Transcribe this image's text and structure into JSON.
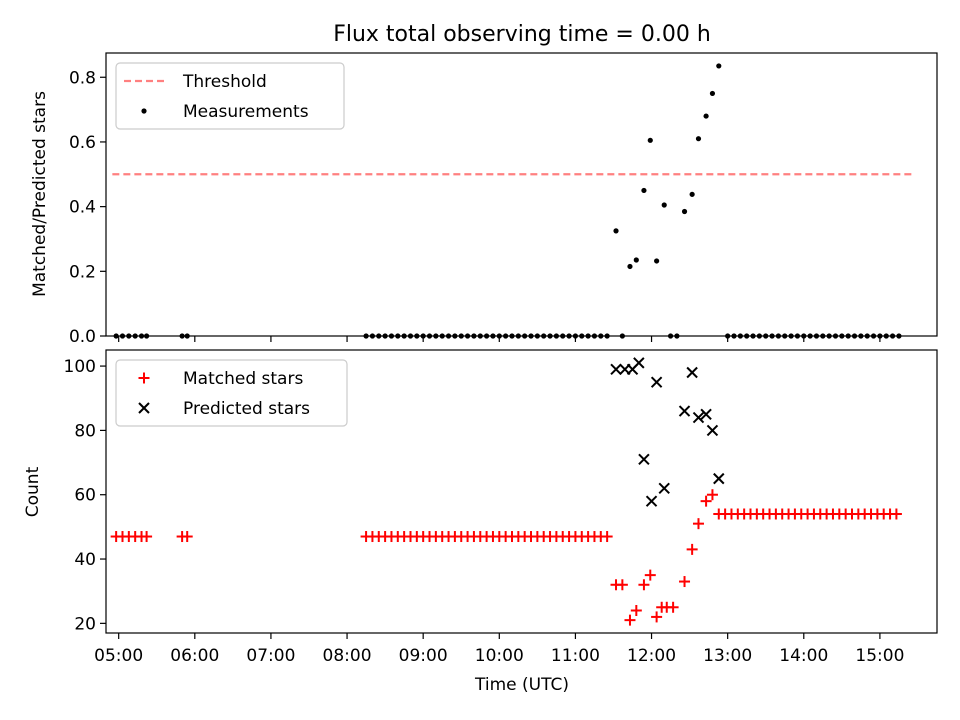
{
  "chart_data": [
    {
      "type": "scatter",
      "title": "Flux total observing time = 0.00 h",
      "ylabel": "Matched/Predicted stars",
      "xlim": [
        "04:50",
        "15:45"
      ],
      "ylim": [
        0,
        0.875
      ],
      "yticks": [
        0.0,
        0.2,
        0.4,
        0.6,
        0.8
      ],
      "ytick_labels": [
        "0.0",
        "0.2",
        "0.4",
        "0.6",
        "0.8"
      ],
      "legend_position": "upper-left",
      "threshold": {
        "name": "Threshold",
        "value": 0.5,
        "x_range": [
          "04:55",
          "15:25"
        ],
        "color": "#ff8080",
        "style": "dashed"
      },
      "series": [
        {
          "name": "Measurements",
          "marker": "dot",
          "color": "#000000",
          "points": [
            [
              "04:58",
              0
            ],
            [
              "05:03",
              0
            ],
            [
              "05:08",
              0
            ],
            [
              "05:13",
              0
            ],
            [
              "05:18",
              0
            ],
            [
              "05:22",
              0
            ],
            [
              "05:50",
              0
            ],
            [
              "05:54",
              0
            ],
            [
              "08:15",
              0
            ],
            [
              "08:20",
              0
            ],
            [
              "08:25",
              0
            ],
            [
              "08:30",
              0
            ],
            [
              "08:35",
              0
            ],
            [
              "08:40",
              0
            ],
            [
              "08:45",
              0
            ],
            [
              "08:50",
              0
            ],
            [
              "08:55",
              0
            ],
            [
              "09:00",
              0
            ],
            [
              "09:05",
              0
            ],
            [
              "09:10",
              0
            ],
            [
              "09:15",
              0
            ],
            [
              "09:20",
              0
            ],
            [
              "09:25",
              0
            ],
            [
              "09:30",
              0
            ],
            [
              "09:35",
              0
            ],
            [
              "09:40",
              0
            ],
            [
              "09:45",
              0
            ],
            [
              "09:50",
              0
            ],
            [
              "09:55",
              0
            ],
            [
              "10:00",
              0
            ],
            [
              "10:05",
              0
            ],
            [
              "10:10",
              0
            ],
            [
              "10:15",
              0
            ],
            [
              "10:20",
              0
            ],
            [
              "10:25",
              0
            ],
            [
              "10:30",
              0
            ],
            [
              "10:35",
              0
            ],
            [
              "10:40",
              0
            ],
            [
              "10:45",
              0
            ],
            [
              "10:50",
              0
            ],
            [
              "10:55",
              0
            ],
            [
              "11:00",
              0
            ],
            [
              "11:05",
              0
            ],
            [
              "11:10",
              0
            ],
            [
              "11:15",
              0
            ],
            [
              "11:20",
              0
            ],
            [
              "11:25",
              0
            ],
            [
              "11:32",
              0.325
            ],
            [
              "11:37",
              0
            ],
            [
              "11:43",
              0.215
            ],
            [
              "11:48",
              0.235
            ],
            [
              "11:54",
              0.45
            ],
            [
              "11:59",
              0.605
            ],
            [
              "12:04",
              0.232
            ],
            [
              "12:10",
              0.405
            ],
            [
              "12:15",
              0
            ],
            [
              "12:20",
              0
            ],
            [
              "12:26",
              0.385
            ],
            [
              "12:32",
              0.438
            ],
            [
              "12:37",
              0.61
            ],
            [
              "12:43",
              0.68
            ],
            [
              "12:48",
              0.75
            ],
            [
              "12:53",
              0.835
            ],
            [
              "13:00",
              0
            ],
            [
              "13:05",
              0
            ],
            [
              "13:10",
              0
            ],
            [
              "13:15",
              0
            ],
            [
              "13:20",
              0
            ],
            [
              "13:25",
              0
            ],
            [
              "13:30",
              0
            ],
            [
              "13:35",
              0
            ],
            [
              "13:40",
              0
            ],
            [
              "13:45",
              0
            ],
            [
              "13:50",
              0
            ],
            [
              "13:55",
              0
            ],
            [
              "14:00",
              0
            ],
            [
              "14:05",
              0
            ],
            [
              "14:10",
              0
            ],
            [
              "14:15",
              0
            ],
            [
              "14:20",
              0
            ],
            [
              "14:25",
              0
            ],
            [
              "14:30",
              0
            ],
            [
              "14:35",
              0
            ],
            [
              "14:40",
              0
            ],
            [
              "14:45",
              0
            ],
            [
              "14:50",
              0
            ],
            [
              "14:55",
              0
            ],
            [
              "15:00",
              0
            ],
            [
              "15:05",
              0
            ],
            [
              "15:10",
              0
            ],
            [
              "15:15",
              0
            ]
          ]
        }
      ]
    },
    {
      "type": "scatter",
      "xlabel": "Time (UTC)",
      "ylabel": "Count",
      "xlim": [
        "04:50",
        "15:45"
      ],
      "ylim": [
        17,
        105
      ],
      "xticks": [
        "05:00",
        "06:00",
        "07:00",
        "08:00",
        "09:00",
        "10:00",
        "11:00",
        "12:00",
        "13:00",
        "14:00",
        "15:00"
      ],
      "xtick_labels": [
        "05:00",
        "06:00",
        "07:00",
        "08:00",
        "09:00",
        "10:00",
        "11:00",
        "12:00",
        "13:00",
        "14:00",
        "15:00"
      ],
      "yticks": [
        20,
        40,
        60,
        80,
        100
      ],
      "ytick_labels": [
        "20",
        "40",
        "60",
        "80",
        "100"
      ],
      "legend_position": "upper-left",
      "series": [
        {
          "name": "Matched stars",
          "marker": "plus",
          "color": "#ff0000",
          "points": [
            [
              "04:58",
              47
            ],
            [
              "05:03",
              47
            ],
            [
              "05:08",
              47
            ],
            [
              "05:13",
              47
            ],
            [
              "05:18",
              47
            ],
            [
              "05:22",
              47
            ],
            [
              "05:50",
              47
            ],
            [
              "05:54",
              47
            ],
            [
              "08:15",
              47
            ],
            [
              "08:20",
              47
            ],
            [
              "08:25",
              47
            ],
            [
              "08:30",
              47
            ],
            [
              "08:35",
              47
            ],
            [
              "08:40",
              47
            ],
            [
              "08:45",
              47
            ],
            [
              "08:50",
              47
            ],
            [
              "08:55",
              47
            ],
            [
              "09:00",
              47
            ],
            [
              "09:05",
              47
            ],
            [
              "09:10",
              47
            ],
            [
              "09:15",
              47
            ],
            [
              "09:20",
              47
            ],
            [
              "09:25",
              47
            ],
            [
              "09:30",
              47
            ],
            [
              "09:35",
              47
            ],
            [
              "09:40",
              47
            ],
            [
              "09:45",
              47
            ],
            [
              "09:50",
              47
            ],
            [
              "09:55",
              47
            ],
            [
              "10:00",
              47
            ],
            [
              "10:05",
              47
            ],
            [
              "10:10",
              47
            ],
            [
              "10:15",
              47
            ],
            [
              "10:20",
              47
            ],
            [
              "10:25",
              47
            ],
            [
              "10:30",
              47
            ],
            [
              "10:35",
              47
            ],
            [
              "10:40",
              47
            ],
            [
              "10:45",
              47
            ],
            [
              "10:50",
              47
            ],
            [
              "10:55",
              47
            ],
            [
              "11:00",
              47
            ],
            [
              "11:05",
              47
            ],
            [
              "11:10",
              47
            ],
            [
              "11:15",
              47
            ],
            [
              "11:20",
              47
            ],
            [
              "11:25",
              47
            ],
            [
              "11:32",
              32
            ],
            [
              "11:37",
              32
            ],
            [
              "11:43",
              21
            ],
            [
              "11:48",
              24
            ],
            [
              "11:54",
              32
            ],
            [
              "11:59",
              35
            ],
            [
              "12:04",
              22
            ],
            [
              "12:08",
              25
            ],
            [
              "12:12",
              25
            ],
            [
              "12:17",
              25
            ],
            [
              "12:26",
              33
            ],
            [
              "12:32",
              43
            ],
            [
              "12:37",
              51
            ],
            [
              "12:43",
              58
            ],
            [
              "12:48",
              60
            ],
            [
              "12:53",
              54
            ],
            [
              "12:58",
              54
            ],
            [
              "13:03",
              54
            ],
            [
              "13:08",
              54
            ],
            [
              "13:13",
              54
            ],
            [
              "13:18",
              54
            ],
            [
              "13:23",
              54
            ],
            [
              "13:28",
              54
            ],
            [
              "13:33",
              54
            ],
            [
              "13:38",
              54
            ],
            [
              "13:43",
              54
            ],
            [
              "13:48",
              54
            ],
            [
              "13:53",
              54
            ],
            [
              "13:58",
              54
            ],
            [
              "14:03",
              54
            ],
            [
              "14:08",
              54
            ],
            [
              "14:13",
              54
            ],
            [
              "14:18",
              54
            ],
            [
              "14:23",
              54
            ],
            [
              "14:28",
              54
            ],
            [
              "14:33",
              54
            ],
            [
              "14:38",
              54
            ],
            [
              "14:43",
              54
            ],
            [
              "14:48",
              54
            ],
            [
              "14:53",
              54
            ],
            [
              "14:58",
              54
            ],
            [
              "15:03",
              54
            ],
            [
              "15:08",
              54
            ],
            [
              "15:13",
              54
            ]
          ]
        },
        {
          "name": "Predicted stars",
          "marker": "x",
          "color": "#000000",
          "points": [
            [
              "11:32",
              99
            ],
            [
              "11:39",
              99
            ],
            [
              "11:45",
              99
            ],
            [
              "11:50",
              101
            ],
            [
              "11:54",
              71
            ],
            [
              "12:00",
              58
            ],
            [
              "12:04",
              95
            ],
            [
              "12:10",
              62
            ],
            [
              "12:26",
              86
            ],
            [
              "12:32",
              98
            ],
            [
              "12:37",
              84
            ],
            [
              "12:43",
              85
            ],
            [
              "12:48",
              80
            ],
            [
              "12:53",
              65
            ]
          ]
        }
      ]
    }
  ]
}
